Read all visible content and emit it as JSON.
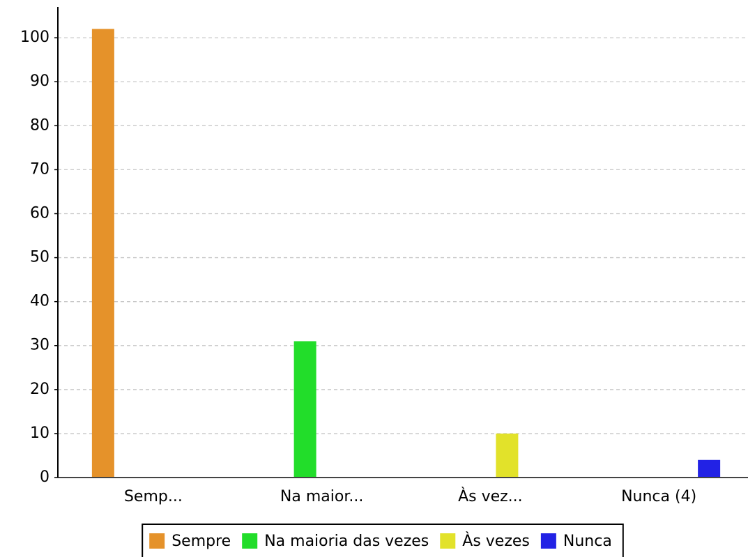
{
  "chart_data": {
    "type": "bar",
    "categories": [
      "Semp...",
      "Na maior...",
      "Às vez...",
      "Nunca (4)"
    ],
    "series": [
      {
        "name": "Sempre",
        "color": "#e5922a",
        "values": [
          102,
          0,
          0,
          0
        ]
      },
      {
        "name": "Na maioria das vezes",
        "color": "#22dd2a",
        "values": [
          0,
          31,
          0,
          0
        ]
      },
      {
        "name": "Às vezes",
        "color": "#e2e22a",
        "values": [
          0,
          0,
          10,
          0
        ]
      },
      {
        "name": "Nunca",
        "color": "#2222e5",
        "values": [
          0,
          0,
          0,
          4
        ]
      }
    ],
    "ylim": [
      0,
      107
    ],
    "yticks": [
      0,
      10,
      20,
      30,
      40,
      50,
      60,
      70,
      80,
      90,
      100
    ],
    "grid": true,
    "legend": "bottom"
  }
}
